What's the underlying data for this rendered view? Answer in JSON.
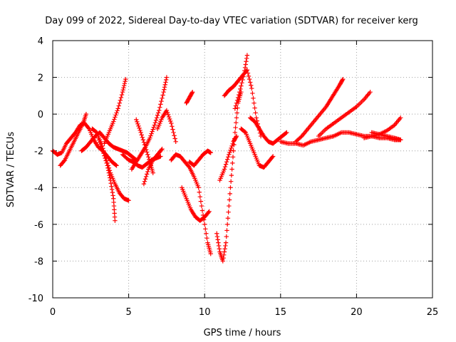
{
  "chart_data": {
    "type": "scatter",
    "title": "Day 099 of 2022, Sidereal Day-to-day VTEC variation (SDTVAR) for receiver kerg",
    "xlabel": "GPS time / hours",
    "ylabel": "SDTVAR / TECUs",
    "xlim": [
      0,
      25
    ],
    "ylim": [
      -10,
      4
    ],
    "xticks": [
      "0",
      "5",
      "10",
      "15",
      "20",
      "25"
    ],
    "yticks": [
      "-10",
      "-8",
      "-6",
      "-4",
      "-2",
      "0",
      "2",
      "4"
    ],
    "grid": true,
    "marker": "+",
    "color": "#ff0000",
    "series": [
      {
        "name": "trace-1",
        "x": [
          0.0,
          0.3,
          0.6,
          0.9,
          1.2,
          1.5,
          1.8,
          2.1,
          2.4,
          2.7,
          3.0,
          3.3,
          3.6,
          3.9,
          4.2
        ],
        "y": [
          -2.0,
          -2.2,
          -2.1,
          -1.6,
          -1.3,
          -1.0,
          -0.6,
          -0.5,
          -0.8,
          -1.4,
          -1.8,
          -2.0,
          -2.3,
          -2.6,
          -2.8
        ]
      },
      {
        "name": "trace-2",
        "x": [
          0.5,
          0.8,
          1.1,
          1.4,
          1.7,
          2.0,
          2.2
        ],
        "y": [
          -2.8,
          -2.5,
          -2.0,
          -1.5,
          -1.0,
          -0.5,
          0.0
        ]
      },
      {
        "name": "trace-3",
        "x": [
          1.9,
          2.2,
          2.5,
          2.8,
          3.1,
          3.4,
          3.7,
          4.0,
          4.3,
          4.6,
          4.9,
          5.2,
          5.5
        ],
        "y": [
          -2.0,
          -1.8,
          -1.5,
          -1.2,
          -1.0,
          -1.3,
          -1.6,
          -1.8,
          -1.9,
          -2.0,
          -2.1,
          -2.3,
          -2.5
        ]
      },
      {
        "name": "trace-4",
        "x": [
          2.6,
          2.9,
          3.2,
          3.5,
          3.8,
          4.1,
          4.4,
          4.7,
          5.0
        ],
        "y": [
          -0.8,
          -1.0,
          -1.6,
          -2.4,
          -3.2,
          -3.8,
          -4.3,
          -4.6,
          -4.7
        ]
      },
      {
        "name": "trace-5",
        "x": [
          3.4,
          3.7,
          4.0,
          4.3,
          4.6,
          4.8
        ],
        "y": [
          -1.6,
          -1.0,
          -0.4,
          0.3,
          1.2,
          1.9
        ]
      },
      {
        "name": "trace-6",
        "x": [
          3.0,
          3.3,
          3.6,
          3.8,
          4.0,
          4.1
        ],
        "y": [
          -1.3,
          -2.0,
          -2.8,
          -3.6,
          -4.6,
          -5.8
        ]
      },
      {
        "name": "trace-7",
        "x": [
          4.6,
          5.0,
          5.3,
          5.6,
          5.9,
          6.2,
          6.5,
          6.8,
          7.1
        ],
        "y": [
          -2.2,
          -2.5,
          -2.6,
          -2.8,
          -2.9,
          -2.7,
          -2.5,
          -2.4,
          -2.3
        ]
      },
      {
        "name": "trace-8",
        "x": [
          5.2,
          5.5,
          5.8,
          6.1,
          6.4,
          6.7,
          7.0,
          7.3,
          7.5
        ],
        "y": [
          -3.0,
          -2.6,
          -2.2,
          -1.8,
          -1.3,
          -0.6,
          0.2,
          1.2,
          2.0
        ]
      },
      {
        "name": "trace-9",
        "x": [
          5.5,
          5.8,
          6.1,
          6.4,
          6.6
        ],
        "y": [
          -0.3,
          -1.0,
          -1.8,
          -2.6,
          -3.2
        ]
      },
      {
        "name": "trace-10",
        "x": [
          6.0,
          6.3,
          6.6,
          6.9,
          7.2
        ],
        "y": [
          -3.8,
          -3.0,
          -2.5,
          -2.2,
          -1.9
        ]
      },
      {
        "name": "trace-11",
        "x": [
          6.9,
          7.2,
          7.5,
          7.8,
          8.1
        ],
        "y": [
          -0.8,
          -0.2,
          0.2,
          -0.5,
          -1.5
        ]
      },
      {
        "name": "trace-12",
        "x": [
          7.8,
          8.1,
          8.4,
          8.7,
          9.0,
          9.3,
          9.6,
          9.9,
          10.2,
          10.4
        ],
        "y": [
          -2.5,
          -2.2,
          -2.3,
          -2.6,
          -2.9,
          -3.4,
          -4.0,
          -5.5,
          -7.0,
          -7.6
        ]
      },
      {
        "name": "trace-13",
        "x": [
          8.8,
          9.0,
          9.2
        ],
        "y": [
          0.6,
          0.9,
          1.2
        ]
      },
      {
        "name": "trace-14",
        "x": [
          8.5,
          8.8,
          9.1,
          9.4,
          9.7,
          10.0,
          10.3
        ],
        "y": [
          -4.0,
          -4.6,
          -5.2,
          -5.6,
          -5.8,
          -5.6,
          -5.3
        ]
      },
      {
        "name": "trace-15",
        "x": [
          9.0,
          9.3,
          9.6,
          9.9,
          10.2,
          10.4
        ],
        "y": [
          -2.6,
          -2.8,
          -2.5,
          -2.2,
          -2.0,
          -2.1
        ]
      },
      {
        "name": "trace-16",
        "x": [
          10.8,
          11.0,
          11.2,
          11.4,
          11.6,
          11.8,
          12.0,
          12.2,
          12.4
        ],
        "y": [
          -6.5,
          -7.5,
          -8.0,
          -7.0,
          -5.0,
          -3.0,
          -1.0,
          0.6,
          1.2
        ]
      },
      {
        "name": "trace-17",
        "x": [
          11.0,
          11.3,
          11.6,
          11.9,
          12.1
        ],
        "y": [
          -3.6,
          -3.0,
          -2.2,
          -1.5,
          -1.2
        ]
      },
      {
        "name": "trace-18",
        "x": [
          11.3,
          11.6,
          11.9,
          12.2,
          12.5,
          12.8,
          13.1,
          13.4,
          13.7
        ],
        "y": [
          1.0,
          1.3,
          1.5,
          1.8,
          2.1,
          2.4,
          1.4,
          -0.2,
          -1.2
        ]
      },
      {
        "name": "trace-19",
        "x": [
          12.0,
          12.3,
          12.6,
          12.8
        ],
        "y": [
          0.3,
          1.2,
          2.2,
          3.2
        ]
      },
      {
        "name": "trace-20",
        "x": [
          12.4,
          12.7,
          13.0,
          13.3,
          13.6,
          13.9,
          14.2,
          14.5
        ],
        "y": [
          -0.8,
          -1.0,
          -1.6,
          -2.2,
          -2.8,
          -2.9,
          -2.6,
          -2.3
        ]
      },
      {
        "name": "trace-21",
        "x": [
          13.0,
          13.3,
          13.6,
          13.9,
          14.2,
          14.5,
          14.8,
          15.1,
          15.4
        ],
        "y": [
          -0.2,
          -0.4,
          -0.8,
          -1.2,
          -1.5,
          -1.6,
          -1.4,
          -1.2,
          -1.0
        ]
      },
      {
        "name": "trace-22",
        "x": [
          15.0,
          15.5,
          16.0,
          16.5,
          17.0,
          17.5,
          18.0,
          18.5,
          19.0,
          19.5,
          20.0,
          20.5,
          21.0,
          21.5,
          22.0,
          22.5,
          22.9
        ],
        "y": [
          -1.5,
          -1.6,
          -1.6,
          -1.7,
          -1.5,
          -1.4,
          -1.3,
          -1.2,
          -1.0,
          -1.0,
          -1.1,
          -1.2,
          -1.2,
          -1.3,
          -1.3,
          -1.4,
          -1.4
        ]
      },
      {
        "name": "trace-23",
        "x": [
          16.0,
          16.4,
          16.8,
          17.2,
          17.6,
          18.0,
          18.3,
          18.6,
          18.9,
          19.1
        ],
        "y": [
          -1.5,
          -1.2,
          -0.8,
          -0.4,
          0.0,
          0.4,
          0.8,
          1.2,
          1.6,
          1.9
        ]
      },
      {
        "name": "trace-24",
        "x": [
          17.5,
          18.0,
          18.5,
          19.0,
          19.5,
          20.0,
          20.5,
          20.9
        ],
        "y": [
          -1.2,
          -0.8,
          -0.5,
          -0.2,
          0.1,
          0.4,
          0.8,
          1.2
        ]
      },
      {
        "name": "trace-25",
        "x": [
          20.5,
          21.0,
          21.5,
          22.0,
          22.5,
          22.9
        ],
        "y": [
          -1.3,
          -1.2,
          -1.1,
          -0.9,
          -0.6,
          -0.2
        ]
      },
      {
        "name": "trace-26",
        "x": [
          21.0,
          21.5,
          22.0,
          22.5,
          22.9
        ],
        "y": [
          -1.0,
          -1.1,
          -1.2,
          -1.3,
          -1.4
        ]
      }
    ]
  }
}
